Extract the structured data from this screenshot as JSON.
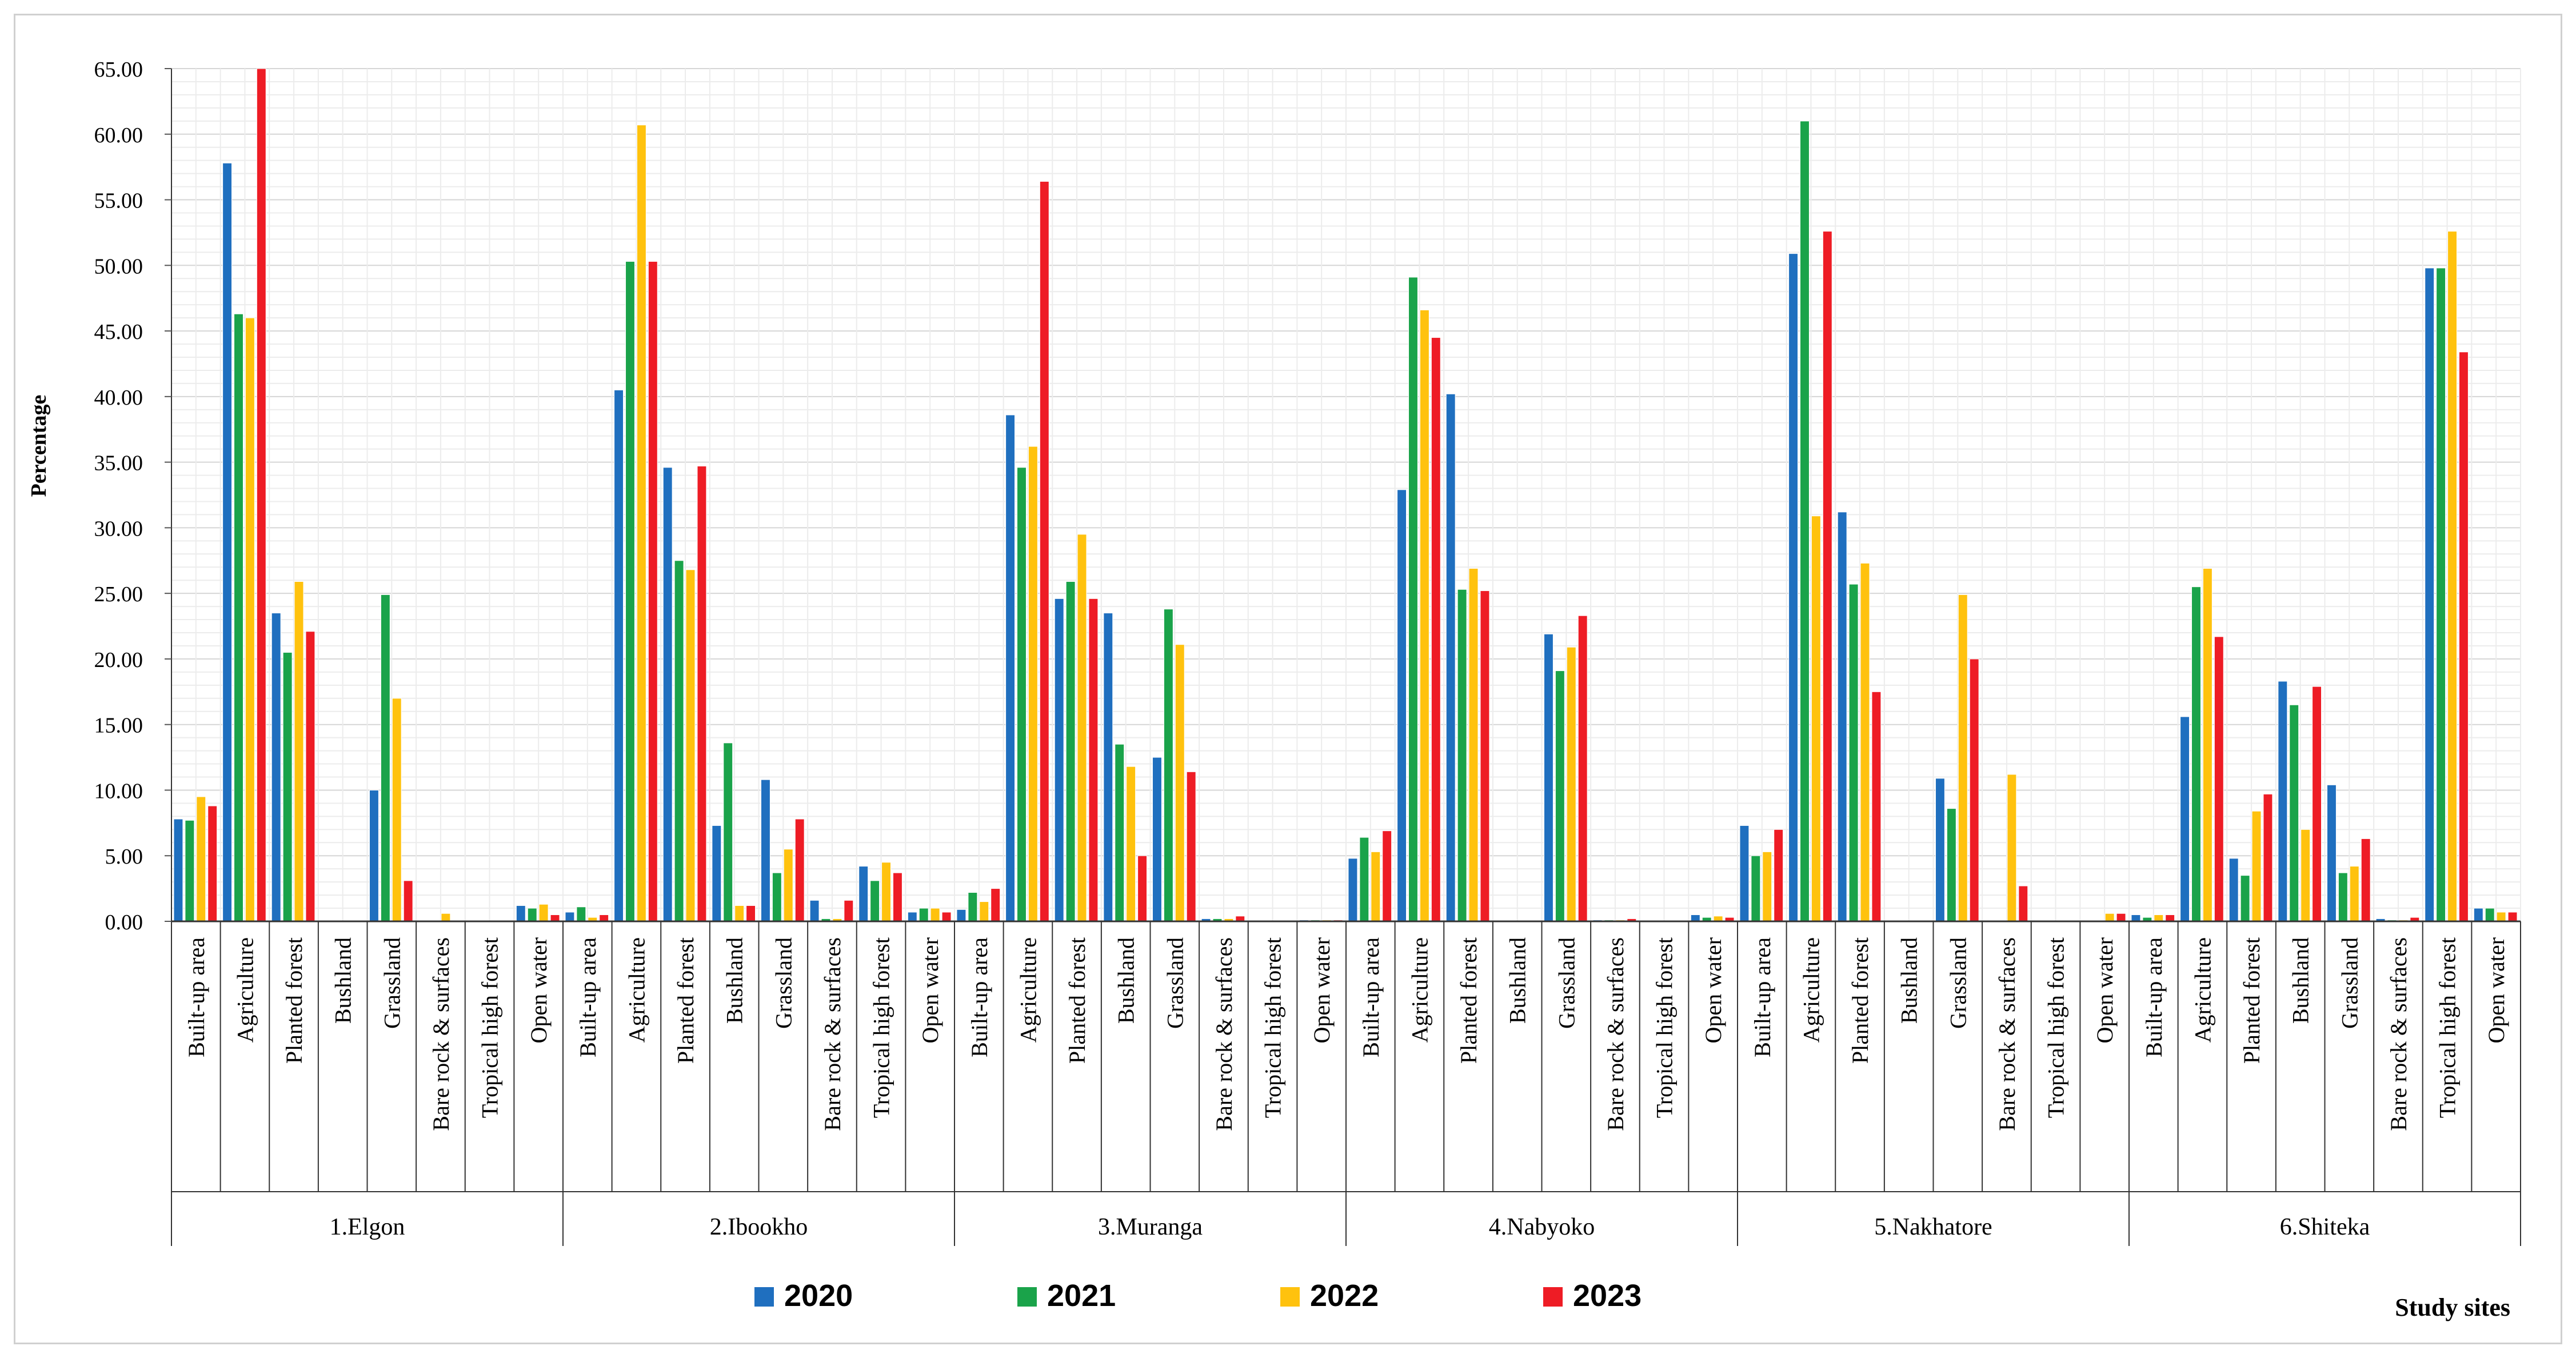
{
  "chart_data": {
    "type": "bar",
    "title": "",
    "ylabel": "Percentage",
    "xlabel": "Study sites",
    "ylim": [
      0,
      65
    ],
    "ytick_step": 5,
    "ytick_labels": [
      "0.00",
      "5.00",
      "10.00",
      "15.00",
      "20.00",
      "25.00",
      "30.00",
      "35.00",
      "40.00",
      "45.00",
      "50.00",
      "55.00",
      "60.00",
      "65.00"
    ],
    "grid": true,
    "legend_position": "bottom-center",
    "land_covers": [
      "Built-up area",
      "Agriculture",
      "Planted forest",
      "Bushland",
      "Grassland",
      "Bare rock & surfaces",
      "Tropical high forest",
      "Open water"
    ],
    "series_colors": {
      "2020": "#1f6fbf",
      "2021": "#1aa34a",
      "2022": "#ffc20e",
      "2023": "#ee1c25"
    },
    "legend": [
      "2020",
      "2021",
      "2022",
      "2023"
    ],
    "sites": [
      {
        "name": "1.Elgon",
        "values": [
          [
            7.8,
            7.7,
            9.5,
            8.8
          ],
          [
            57.8,
            46.3,
            46.0,
            65.0
          ],
          [
            23.5,
            20.5,
            25.9,
            22.1
          ],
          [
            0.0,
            0.0,
            0.0,
            0.0
          ],
          [
            10.0,
            24.9,
            17.0,
            3.1
          ],
          [
            0.0,
            0.0,
            0.6,
            0.0
          ],
          [
            0.0,
            0.0,
            0.0,
            0.0
          ],
          [
            1.2,
            1.0,
            1.3,
            0.5
          ]
        ]
      },
      {
        "name": "2.Ibookho",
        "values": [
          [
            0.7,
            1.1,
            0.3,
            0.5
          ],
          [
            40.5,
            50.3,
            60.7,
            50.3
          ],
          [
            34.6,
            27.5,
            26.8,
            34.7
          ],
          [
            7.3,
            13.6,
            1.2,
            1.2
          ],
          [
            10.8,
            3.7,
            5.5,
            7.8
          ],
          [
            1.6,
            0.2,
            0.2,
            1.6
          ],
          [
            4.2,
            3.1,
            4.5,
            3.7
          ],
          [
            0.7,
            1.0,
            1.0,
            0.7
          ]
        ]
      },
      {
        "name": "3.Muranga",
        "values": [
          [
            0.9,
            2.2,
            1.5,
            2.5
          ],
          [
            38.6,
            34.6,
            36.2,
            56.4
          ],
          [
            24.6,
            25.9,
            29.5,
            24.6
          ],
          [
            23.5,
            13.5,
            11.8,
            5.0
          ],
          [
            12.5,
            23.8,
            21.1,
            11.4
          ],
          [
            0.2,
            0.2,
            0.2,
            0.4
          ],
          [
            0.0,
            0.0,
            0.0,
            0.0
          ],
          [
            0.1,
            0.1,
            0.1,
            0.1
          ]
        ]
      },
      {
        "name": "4.Nabyoko",
        "values": [
          [
            4.8,
            6.4,
            5.3,
            6.9
          ],
          [
            32.9,
            49.1,
            46.6,
            44.5
          ],
          [
            40.2,
            25.3,
            26.9,
            25.2
          ],
          [
            0.0,
            0.0,
            0.0,
            0.0
          ],
          [
            21.9,
            19.1,
            20.9,
            23.3
          ],
          [
            0.1,
            0.1,
            0.1,
            0.2
          ],
          [
            0.0,
            0.0,
            0.0,
            0.0
          ],
          [
            0.5,
            0.3,
            0.4,
            0.3
          ]
        ]
      },
      {
        "name": "5.Nakhatore",
        "values": [
          [
            7.3,
            5.0,
            5.3,
            7.0
          ],
          [
            50.9,
            61.0,
            30.9,
            52.6
          ],
          [
            31.2,
            25.7,
            27.3,
            17.5
          ],
          [
            0.0,
            0.0,
            0.0,
            0.0
          ],
          [
            10.9,
            8.6,
            24.9,
            20.0
          ],
          [
            0.0,
            0.0,
            11.2,
            2.7
          ],
          [
            0.0,
            0.0,
            0.0,
            0.0
          ],
          [
            0.0,
            0.0,
            0.6,
            0.6
          ]
        ]
      },
      {
        "name": "6.Shiteka",
        "values": [
          [
            0.5,
            0.3,
            0.5,
            0.5
          ],
          [
            15.6,
            25.5,
            26.9,
            21.7
          ],
          [
            4.8,
            3.5,
            8.4,
            9.7
          ],
          [
            18.3,
            16.5,
            7.0,
            17.9
          ],
          [
            10.4,
            3.7,
            4.2,
            6.3
          ],
          [
            0.2,
            0.1,
            0.1,
            0.3
          ],
          [
            49.8,
            49.8,
            52.6,
            43.4
          ],
          [
            1.0,
            1.0,
            0.7,
            0.7
          ]
        ]
      }
    ]
  }
}
